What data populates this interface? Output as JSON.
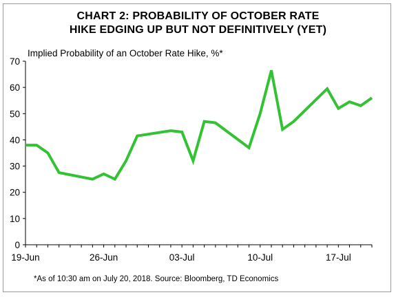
{
  "chart_data": {
    "type": "line",
    "title_lines": [
      "CHART 2: PROBABILITY OF OCTOBER RATE",
      "HIKE EDGING UP BUT NOT DEFINITIVELY (YET)"
    ],
    "ylabel": "Implied Probability of an October Rate Hike, %*",
    "note": "*As of 10:30 am on July 20, 2018. Source: Bloomberg, TD Economics",
    "x_ticks": [
      "19-Jun",
      "26-Jun",
      "03-Jul",
      "10-Jul",
      "17-Jul"
    ],
    "y_ticks": [
      "0",
      "10",
      "20",
      "30",
      "40",
      "50",
      "60",
      "70"
    ],
    "ylim": [
      0,
      70
    ],
    "grid": false,
    "line_color": "#33c233",
    "series": [
      {
        "x": [
          "19-Jun",
          "20-Jun",
          "21-Jun",
          "22-Jun",
          "25-Jun",
          "26-Jun",
          "27-Jun",
          "28-Jun",
          "29-Jun",
          "02-Jul",
          "03-Jul",
          "04-Jul",
          "05-Jul",
          "06-Jul",
          "09-Jul",
          "10-Jul",
          "11-Jul",
          "12-Jul",
          "13-Jul",
          "16-Jul",
          "17-Jul",
          "18-Jul",
          "19-Jul",
          "20-Jul"
        ],
        "values": [
          38,
          38,
          35,
          27.5,
          25,
          27,
          25,
          32,
          41.5,
          43.5,
          43,
          32,
          47,
          46.5,
          37,
          50,
          66.5,
          44,
          47,
          59.5,
          52,
          54.5,
          53,
          56
        ]
      }
    ]
  }
}
